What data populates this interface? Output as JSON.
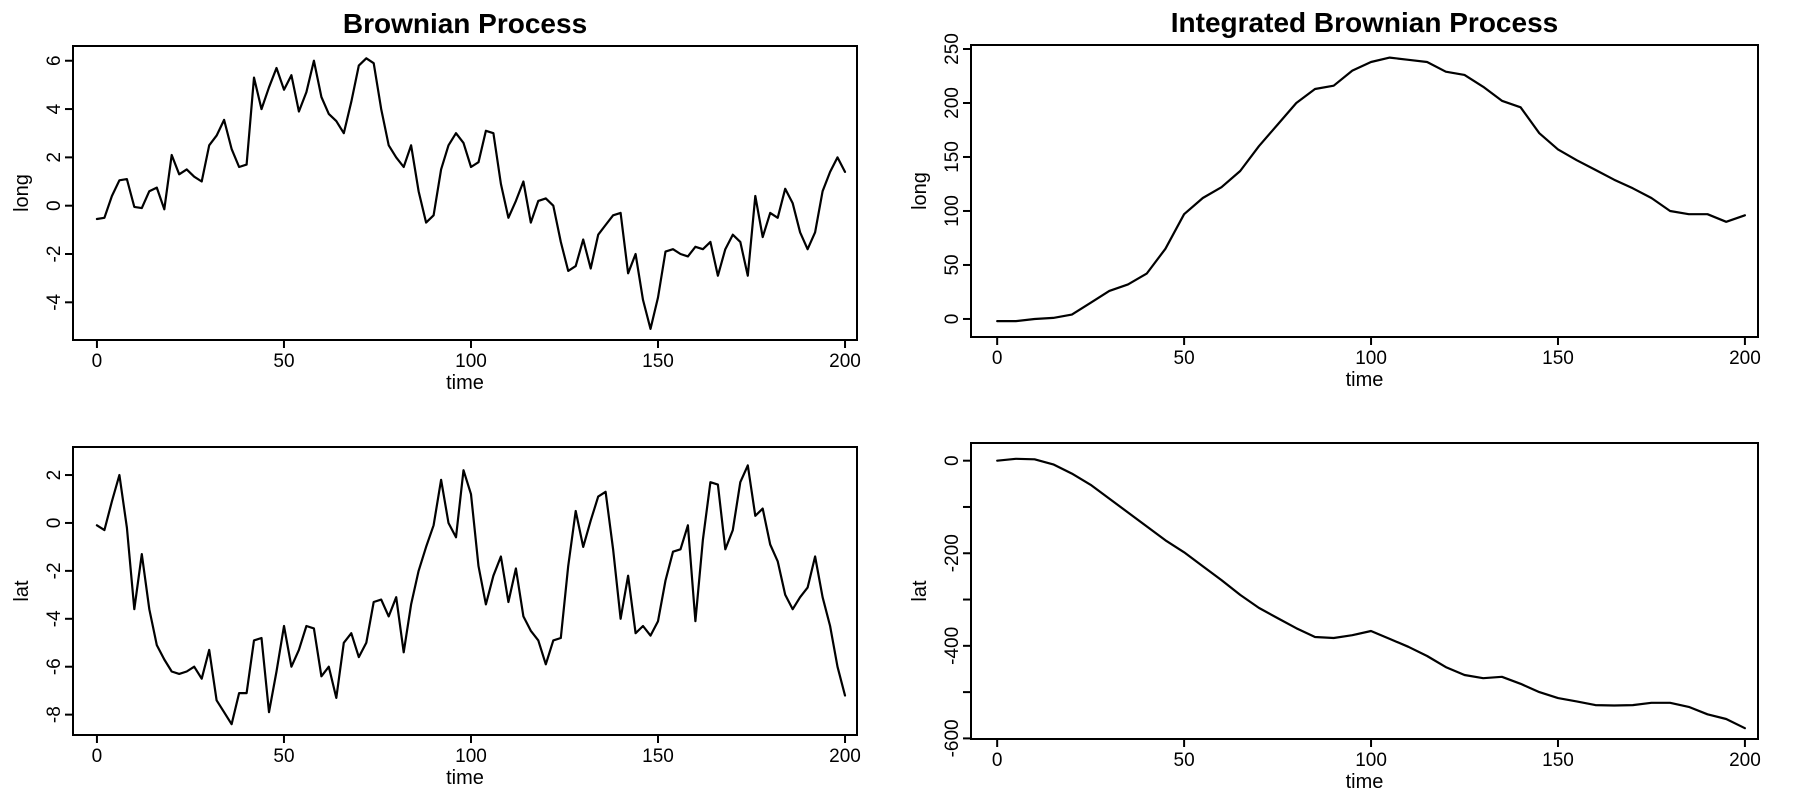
{
  "figure": {
    "background": "#ffffff",
    "line_color": "#000000",
    "text_color": "#000000"
  },
  "chart_data": [
    {
      "type": "line",
      "panel": "top-left",
      "title": "Brownian Process",
      "xlabel": "time",
      "ylabel": "long",
      "grid": false,
      "legend": null,
      "xlim": [
        -6.4,
        203.2
      ],
      "ylim": [
        -5.56,
        6.61
      ],
      "x_ticks": [
        0,
        50,
        100,
        150,
        200
      ],
      "x_tick_labels": [
        "0",
        "50",
        "100",
        "150",
        "200"
      ],
      "y_ticks": [
        -4,
        -2,
        0,
        2,
        4,
        6
      ],
      "y_tick_labels": [
        "-4",
        "-2",
        "0",
        "2",
        "4",
        "6"
      ],
      "x": [
        0,
        2,
        4,
        6,
        8,
        10,
        12,
        14,
        16,
        18,
        20,
        22,
        24,
        26,
        28,
        30,
        32,
        34,
        36,
        38,
        40,
        42,
        44,
        46,
        48,
        50,
        52,
        54,
        56,
        58,
        60,
        62,
        64,
        66,
        68,
        70,
        72,
        74,
        76,
        78,
        80,
        82,
        84,
        86,
        88,
        90,
        92,
        94,
        96,
        98,
        100,
        102,
        104,
        106,
        108,
        110,
        112,
        114,
        116,
        118,
        120,
        122,
        124,
        126,
        128,
        130,
        132,
        134,
        136,
        138,
        140,
        142,
        144,
        146,
        148,
        150,
        152,
        154,
        156,
        158,
        160,
        162,
        164,
        166,
        168,
        170,
        172,
        174,
        176,
        178,
        180,
        182,
        184,
        186,
        188,
        190,
        192,
        194,
        196,
        198,
        200
      ],
      "y": [
        -0.55,
        -0.5,
        0.4,
        1.05,
        1.1,
        -0.05,
        -0.1,
        0.6,
        0.75,
        -0.15,
        2.1,
        1.3,
        1.5,
        1.2,
        1.0,
        2.5,
        2.9,
        3.55,
        2.35,
        1.6,
        1.7,
        5.3,
        4.0,
        4.9,
        5.7,
        4.8,
        5.4,
        3.9,
        4.7,
        6.0,
        4.5,
        3.8,
        3.5,
        3.0,
        4.3,
        5.8,
        6.1,
        5.9,
        4.0,
        2.5,
        2.0,
        1.6,
        2.5,
        0.6,
        -0.7,
        -0.4,
        1.5,
        2.5,
        3.0,
        2.6,
        1.6,
        1.8,
        3.1,
        3.0,
        0.9,
        -0.5,
        0.2,
        1.0,
        -0.7,
        0.2,
        0.3,
        0.0,
        -1.5,
        -2.7,
        -2.5,
        -1.4,
        -2.6,
        -1.2,
        -0.8,
        -0.4,
        -0.3,
        -2.8,
        -2.0,
        -3.9,
        -5.1,
        -3.8,
        -1.9,
        -1.8,
        -2.0,
        -2.1,
        -1.7,
        -1.8,
        -1.5,
        -2.9,
        -1.8,
        -1.2,
        -1.5,
        -2.9,
        0.4,
        -1.3,
        -0.3,
        -0.5,
        0.7,
        0.1,
        -1.1,
        -1.8,
        -1.1,
        0.6,
        1.4,
        2.0,
        1.4
      ]
    },
    {
      "type": "line",
      "panel": "top-right",
      "title": "Integrated Brownian Process",
      "xlabel": "time",
      "ylabel": "long",
      "grid": false,
      "legend": null,
      "xlim": [
        -7.0,
        203.5
      ],
      "ylim": [
        -16.7,
        253.7
      ],
      "x_ticks": [
        0,
        50,
        100,
        150,
        200
      ],
      "x_tick_labels": [
        "0",
        "50",
        "100",
        "150",
        "200"
      ],
      "y_ticks": [
        0,
        50,
        100,
        150,
        200,
        250
      ],
      "y_tick_labels": [
        "0",
        "50",
        "100",
        "150",
        "200",
        "250"
      ],
      "x": [
        0,
        5,
        10,
        15,
        20,
        25,
        30,
        35,
        40,
        45,
        50,
        55,
        60,
        65,
        70,
        75,
        80,
        85,
        90,
        95,
        100,
        105,
        110,
        115,
        120,
        125,
        130,
        135,
        140,
        145,
        150,
        155,
        160,
        165,
        170,
        175,
        180,
        185,
        190,
        195,
        200
      ],
      "y": [
        -2,
        -2,
        0,
        1,
        4,
        15,
        26,
        32,
        42,
        65,
        97,
        112,
        122,
        137,
        160,
        180,
        200,
        213,
        216,
        230,
        238,
        242,
        240,
        238,
        229,
        226,
        215,
        202,
        196,
        172,
        157,
        147,
        138,
        129,
        121,
        112,
        100,
        97,
        97,
        90,
        96
      ]
    },
    {
      "type": "line",
      "panel": "bottom-left",
      "title": "",
      "xlabel": "time",
      "ylabel": "lat",
      "grid": false,
      "legend": null,
      "xlim": [
        -6.4,
        203.2
      ],
      "ylim": [
        -8.85,
        3.17
      ],
      "x_ticks": [
        0,
        50,
        100,
        150,
        200
      ],
      "x_tick_labels": [
        "0",
        "50",
        "100",
        "150",
        "200"
      ],
      "y_ticks": [
        -8,
        -6,
        -4,
        -2,
        0,
        2
      ],
      "y_tick_labels": [
        "-8",
        "-6",
        "-4",
        "-2",
        "0",
        "2"
      ],
      "x": [
        0,
        2,
        4,
        6,
        8,
        10,
        12,
        14,
        16,
        18,
        20,
        22,
        24,
        26,
        28,
        30,
        32,
        34,
        36,
        38,
        40,
        42,
        44,
        46,
        48,
        50,
        52,
        54,
        56,
        58,
        60,
        62,
        64,
        66,
        68,
        70,
        72,
        74,
        76,
        78,
        80,
        82,
        84,
        86,
        88,
        90,
        92,
        94,
        96,
        98,
        100,
        102,
        104,
        106,
        108,
        110,
        112,
        114,
        116,
        118,
        120,
        122,
        124,
        126,
        128,
        130,
        132,
        134,
        136,
        138,
        140,
        142,
        144,
        146,
        148,
        150,
        152,
        154,
        156,
        158,
        160,
        162,
        164,
        166,
        168,
        170,
        172,
        174,
        176,
        178,
        180,
        182,
        184,
        186,
        188,
        190,
        192,
        194,
        196,
        198,
        200
      ],
      "y": [
        -0.1,
        -0.3,
        0.9,
        2.0,
        -0.2,
        -3.6,
        -1.3,
        -3.6,
        -5.1,
        -5.7,
        -6.2,
        -6.3,
        -6.2,
        -6.0,
        -6.5,
        -5.3,
        -7.4,
        -7.9,
        -8.4,
        -7.1,
        -7.1,
        -4.9,
        -4.8,
        -7.9,
        -6.2,
        -4.3,
        -6.0,
        -5.3,
        -4.3,
        -4.4,
        -6.4,
        -6.0,
        -7.3,
        -5.0,
        -4.6,
        -5.6,
        -5.0,
        -3.3,
        -3.2,
        -3.9,
        -3.1,
        -5.4,
        -3.4,
        -2.0,
        -1.0,
        -0.1,
        1.8,
        0.0,
        -0.6,
        2.2,
        1.2,
        -1.8,
        -3.4,
        -2.2,
        -1.4,
        -3.3,
        -1.9,
        -3.9,
        -4.5,
        -4.9,
        -5.9,
        -4.9,
        -4.8,
        -1.8,
        0.5,
        -1.0,
        0.1,
        1.1,
        1.3,
        -1.1,
        -4.0,
        -2.2,
        -4.6,
        -4.3,
        -4.7,
        -4.1,
        -2.4,
        -1.2,
        -1.1,
        -0.1,
        -4.1,
        -0.7,
        1.7,
        1.6,
        -1.1,
        -0.3,
        1.7,
        2.4,
        0.3,
        0.6,
        -0.9,
        -1.6,
        -3.0,
        -3.6,
        -3.1,
        -2.7,
        -1.4,
        -3.1,
        -4.3,
        -6.0,
        -7.2
      ]
    },
    {
      "type": "line",
      "panel": "bottom-right",
      "title": "",
      "xlabel": "time",
      "ylabel": "lat",
      "grid": false,
      "legend": null,
      "xlim": [
        -7.0,
        203.5
      ],
      "ylim": [
        -601.3,
        38.2
      ],
      "x_ticks": [
        0,
        50,
        100,
        150,
        200
      ],
      "x_tick_labels": [
        "0",
        "50",
        "100",
        "150",
        "200"
      ],
      "y_ticks": [
        0,
        -100,
        -200,
        -300,
        -400,
        -500,
        -600
      ],
      "y_tick_labels": [
        "0",
        "",
        "-200",
        "",
        "-400",
        "",
        "-600"
      ],
      "x": [
        0,
        5,
        10,
        15,
        20,
        25,
        30,
        35,
        40,
        45,
        50,
        55,
        60,
        65,
        70,
        75,
        80,
        85,
        90,
        95,
        100,
        105,
        110,
        115,
        120,
        125,
        130,
        135,
        140,
        145,
        150,
        155,
        160,
        165,
        170,
        175,
        180,
        185,
        190,
        195,
        200
      ],
      "y": [
        0,
        4,
        3,
        -8,
        -28,
        -52,
        -82,
        -112,
        -142,
        -172,
        -198,
        -228,
        -258,
        -290,
        -318,
        -340,
        -362,
        -381,
        -383,
        -377,
        -368,
        -385,
        -402,
        -422,
        -446,
        -463,
        -470,
        -467,
        -482,
        -500,
        -513,
        -520,
        -528,
        -529,
        -528,
        -523,
        -523,
        -532,
        -548,
        -558,
        -578
      ]
    }
  ]
}
